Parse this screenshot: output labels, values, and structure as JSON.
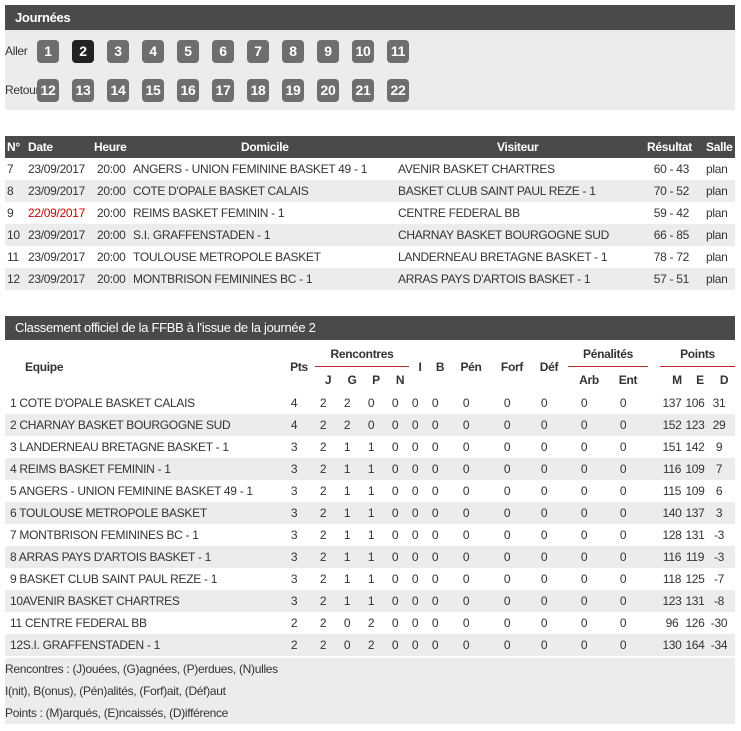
{
  "journees": {
    "title": "Journées",
    "aller_label": "Aller",
    "retour_label": "Retour",
    "aller": [
      "1",
      "2",
      "3",
      "4",
      "5",
      "6",
      "7",
      "8",
      "9",
      "10",
      "11"
    ],
    "retour": [
      "12",
      "13",
      "14",
      "15",
      "16",
      "17",
      "18",
      "19",
      "20",
      "21",
      "22"
    ],
    "active": "2"
  },
  "matches": {
    "headers": [
      "N°",
      "Date",
      "Heure",
      "Domicile",
      "Visiteur",
      "Résultat",
      "Salle"
    ],
    "rows": [
      [
        "7",
        "23/09/2017",
        "20:00",
        "ANGERS - UNION FEMININE BASKET 49 - 1",
        "AVENIR BASKET CHARTRES",
        "60 - 43",
        "plan"
      ],
      [
        "8",
        "23/09/2017",
        "20:00",
        "COTE D'OPALE BASKET CALAIS",
        "BASKET CLUB SAINT PAUL REZE - 1",
        "70 - 52",
        "plan"
      ],
      [
        "9",
        "22/09/2017",
        "20:00",
        "REIMS BASKET FEMININ - 1",
        "CENTRE FEDERAL BB",
        "59 - 42",
        "plan"
      ],
      [
        "10",
        "23/09/2017",
        "20:00",
        "S.I. GRAFFENSTADEN - 1",
        "CHARNAY BASKET BOURGOGNE SUD",
        "66 - 85",
        "plan"
      ],
      [
        "11",
        "23/09/2017",
        "20:00",
        "TOULOUSE METROPOLE BASKET",
        "LANDERNEAU BRETAGNE BASKET - 1",
        "78 - 72",
        "plan"
      ],
      [
        "12",
        "23/09/2017",
        "20:00",
        "MONTBRISON FEMININES BC - 1",
        "ARRAS PAYS D'ARTOIS BASKET - 1",
        "57 - 51",
        "plan"
      ]
    ],
    "highlight_date_color": "#cc0000"
  },
  "standings": {
    "title": "Classement officiel de la FFBB à l'issue de la journée 2",
    "group_headers": {
      "rencontres": "Rencontres",
      "penalites": "Pénalités",
      "points": "Points"
    },
    "headers": {
      "equipe": "Equipe",
      "pts": "Pts",
      "j": "J",
      "g": "G",
      "p": "P",
      "n": "N",
      "i": "I",
      "b": "B",
      "pen": "Pén",
      "forf": "Forf",
      "def": "Déf",
      "arb": "Arb",
      "ent": "Ent",
      "m": "M",
      "e": "E",
      "d": "D"
    },
    "rows": [
      [
        "1 COTE D'OPALE BASKET CALAIS",
        "4",
        "2",
        "2",
        "0",
        "0",
        "0",
        "0",
        "0",
        "0",
        "0",
        "0",
        "0",
        "137",
        "106",
        "31"
      ],
      [
        "2 CHARNAY BASKET BOURGOGNE SUD",
        "4",
        "2",
        "2",
        "0",
        "0",
        "0",
        "0",
        "0",
        "0",
        "0",
        "0",
        "0",
        "152",
        "123",
        "29"
      ],
      [
        "3 LANDERNEAU BRETAGNE BASKET - 1",
        "3",
        "2",
        "1",
        "1",
        "0",
        "0",
        "0",
        "0",
        "0",
        "0",
        "0",
        "0",
        "151",
        "142",
        "9"
      ],
      [
        "4 REIMS BASKET FEMININ - 1",
        "3",
        "2",
        "1",
        "1",
        "0",
        "0",
        "0",
        "0",
        "0",
        "0",
        "0",
        "0",
        "116",
        "109",
        "7"
      ],
      [
        "5 ANGERS - UNION FEMININE BASKET 49 - 1",
        "3",
        "2",
        "1",
        "1",
        "0",
        "0",
        "0",
        "0",
        "0",
        "0",
        "0",
        "0",
        "115",
        "109",
        "6"
      ],
      [
        "6 TOULOUSE METROPOLE BASKET",
        "3",
        "2",
        "1",
        "1",
        "0",
        "0",
        "0",
        "0",
        "0",
        "0",
        "0",
        "0",
        "140",
        "137",
        "3"
      ],
      [
        "7 MONTBRISON FEMININES BC - 1",
        "3",
        "2",
        "1",
        "1",
        "0",
        "0",
        "0",
        "0",
        "0",
        "0",
        "0",
        "0",
        "128",
        "131",
        "-3"
      ],
      [
        "8 ARRAS PAYS D'ARTOIS BASKET - 1",
        "3",
        "2",
        "1",
        "1",
        "0",
        "0",
        "0",
        "0",
        "0",
        "0",
        "0",
        "0",
        "116",
        "119",
        "-3"
      ],
      [
        "9 BASKET CLUB SAINT PAUL REZE - 1",
        "3",
        "2",
        "1",
        "1",
        "0",
        "0",
        "0",
        "0",
        "0",
        "0",
        "0",
        "0",
        "118",
        "125",
        "-7"
      ],
      [
        "10AVENIR BASKET CHARTRES",
        "3",
        "2",
        "1",
        "1",
        "0",
        "0",
        "0",
        "0",
        "0",
        "0",
        "0",
        "0",
        "123",
        "131",
        "-8"
      ],
      [
        "11 CENTRE FEDERAL BB",
        "2",
        "2",
        "0",
        "2",
        "0",
        "0",
        "0",
        "0",
        "0",
        "0",
        "0",
        "0",
        "96",
        "126",
        "-30"
      ],
      [
        "12S.I. GRAFFENSTADEN - 1",
        "2",
        "2",
        "0",
        "2",
        "0",
        "0",
        "0",
        "0",
        "0",
        "0",
        "0",
        "0",
        "130",
        "164",
        "-34"
      ]
    ],
    "legend": [
      "Rencontres : (J)ouées, (G)agnées, (P)erdues, (N)ulles",
      "I(nit), B(onus), (Pén)alités, (Forf)ait, (Déf)aut",
      "Points : (M)arqués, (E)ncaissés, (D)ifférence"
    ],
    "accent_color": "#c0272d"
  }
}
